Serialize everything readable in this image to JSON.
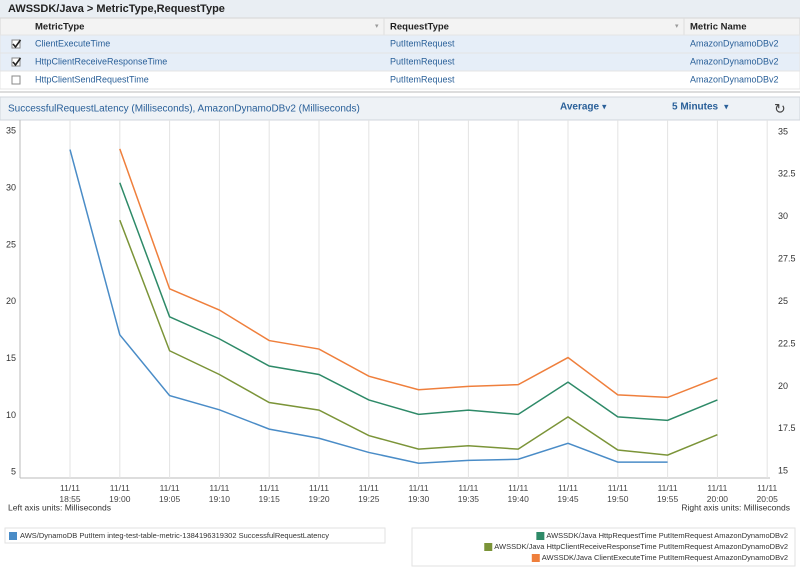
{
  "header": {
    "title": "AWSSDK/Java > MetricType,RequestType"
  },
  "table": {
    "columns": [
      "MetricType",
      "RequestType",
      "Metric Name"
    ],
    "rows": [
      {
        "cells": [
          "ClientExecuteTime",
          "PutItemRequest",
          "AmazonDynamoDBv2"
        ],
        "checked": true
      },
      {
        "cells": [
          "HttpClientReceiveResponseTime",
          "PutItemRequest",
          "AmazonDynamoDBv2"
        ],
        "checked": true
      },
      {
        "cells": [
          "HttpClientSendRequestTime",
          "PutItemRequest",
          "AmazonDynamoDBv2"
        ],
        "checked": false
      }
    ]
  },
  "chart_data": {
    "type": "line",
    "title": "SuccessfulRequestLatency (Milliseconds), AmazonDynamoDBv2 (Milliseconds)",
    "statistic": "Average",
    "period": "5 Minutes",
    "left_axis_label": "Left axis units: Milliseconds",
    "right_axis_label": "Right axis units: Milliseconds",
    "categories": [
      "11/11 18:55",
      "11/11 19:00",
      "11/11 19:05",
      "11/11 19:10",
      "11/11 19:15",
      "11/11 19:20",
      "11/11 19:25",
      "11/11 19:30",
      "11/11 19:35",
      "11/11 19:40",
      "11/11 19:45",
      "11/11 19:50",
      "11/11 19:55",
      "11/11 20:00",
      "11/11 20:05"
    ],
    "ylim": [
      4.5,
      36
    ],
    "yticks": [
      5,
      10,
      15,
      20,
      25,
      30,
      35
    ],
    "y2lim": [
      14.6,
      35.7
    ],
    "y2ticks": [
      15,
      17.5,
      20,
      22.5,
      25,
      27.5,
      30,
      32.5,
      35
    ],
    "grid": true,
    "series": [
      {
        "name": "AWS/DynamoDB PutItem integ-test-table-metric-1384196319302 SuccessfulRequestLatency",
        "color": "#4a8cc7",
        "axis": "y",
        "values": [
          33.4,
          17.1,
          11.75,
          10.5,
          8.8,
          8.0,
          6.75,
          5.8,
          6.05,
          6.15,
          7.55,
          5.9,
          5.9,
          null,
          null
        ]
      },
      {
        "name": "AWSSDK/Java HttpRequestTime PutItemRequest AmazonDynamoDBv2",
        "color": "#2e8a68",
        "axis": "y2",
        "values": [
          null,
          32.0,
          24.1,
          22.8,
          21.2,
          20.7,
          19.2,
          18.35,
          18.6,
          18.35,
          20.25,
          18.2,
          18.0,
          19.2,
          null
        ]
      },
      {
        "name": "AWSSDK/Java HttpClientReceiveResponseTime PutItemRequest AmazonDynamoDBv2",
        "color": "#7b9438",
        "axis": "y2",
        "values": [
          null,
          29.8,
          22.1,
          20.7,
          19.05,
          18.6,
          17.1,
          16.3,
          16.5,
          16.3,
          18.2,
          16.25,
          15.95,
          17.15,
          null
        ]
      },
      {
        "name": "AWSSDK/Java ClientExecuteTime PutItemRequest AmazonDynamoDBv2",
        "color": "#ef7f3c",
        "axis": "y2",
        "values": [
          null,
          34.0,
          25.75,
          24.5,
          22.7,
          22.2,
          20.6,
          19.8,
          20.0,
          20.1,
          21.7,
          19.5,
          19.35,
          20.5,
          null
        ]
      }
    ]
  }
}
